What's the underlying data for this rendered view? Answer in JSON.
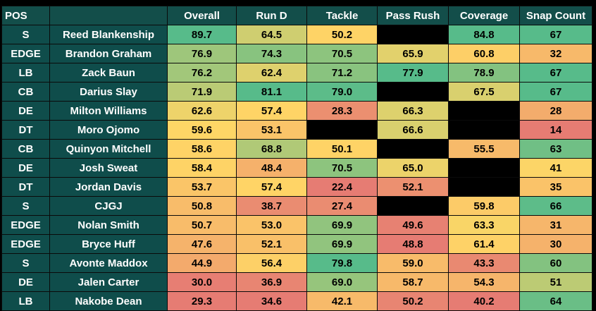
{
  "chart_data": {
    "type": "table",
    "columns": [
      "POS",
      "",
      "Overall",
      "Run D",
      "Tackle",
      "Pass Rush",
      "Coverage",
      "Snap Count"
    ],
    "rows": [
      {
        "pos": "S",
        "player": "Reed Blankenship",
        "values": [
          89.7,
          64.5,
          50.2,
          null,
          84.8,
          67
        ]
      },
      {
        "pos": "EDGE",
        "player": "Brandon Graham",
        "values": [
          76.9,
          74.3,
          70.5,
          65.9,
          60.8,
          32
        ]
      },
      {
        "pos": "LB",
        "player": "Zack Baun",
        "values": [
          76.2,
          62.4,
          71.2,
          77.9,
          78.9,
          67
        ]
      },
      {
        "pos": "CB",
        "player": "Darius Slay",
        "values": [
          71.9,
          81.1,
          79.0,
          null,
          67.5,
          67
        ]
      },
      {
        "pos": "DE",
        "player": "Milton Williams",
        "values": [
          62.6,
          57.4,
          28.3,
          66.3,
          null,
          28
        ]
      },
      {
        "pos": "DT",
        "player": "Moro Ojomo",
        "values": [
          59.6,
          53.1,
          null,
          66.6,
          null,
          14
        ]
      },
      {
        "pos": "CB",
        "player": "Quinyon Mitchell",
        "values": [
          58.6,
          68.8,
          50.1,
          null,
          55.5,
          63
        ]
      },
      {
        "pos": "DE",
        "player": "Josh Sweat",
        "values": [
          58.4,
          48.4,
          70.5,
          65.0,
          null,
          41
        ]
      },
      {
        "pos": "DT",
        "player": "Jordan Davis",
        "values": [
          53.7,
          57.4,
          22.4,
          52.1,
          null,
          35
        ]
      },
      {
        "pos": "S",
        "player": "CJGJ",
        "values": [
          50.8,
          38.7,
          27.4,
          null,
          59.8,
          66
        ]
      },
      {
        "pos": "EDGE",
        "player": "Nolan Smith",
        "values": [
          50.7,
          53.0,
          69.9,
          49.6,
          63.3,
          31
        ]
      },
      {
        "pos": "EDGE",
        "player": "Bryce Huff",
        "values": [
          47.6,
          52.1,
          69.9,
          48.8,
          61.4,
          30
        ]
      },
      {
        "pos": "S",
        "player": "Avonte Maddox",
        "values": [
          44.9,
          56.4,
          79.8,
          59.0,
          43.3,
          60
        ]
      },
      {
        "pos": "DE",
        "player": "Jalen Carter",
        "values": [
          30.0,
          36.9,
          69.0,
          58.7,
          54.3,
          51
        ]
      },
      {
        "pos": "LB",
        "player": "Nakobe Dean",
        "values": [
          29.3,
          34.6,
          42.1,
          50.2,
          40.2,
          64
        ]
      }
    ],
    "value_decimals": [
      1,
      1,
      1,
      1,
      1,
      0
    ],
    "color_scale": {
      "low": "#e67c73",
      "mid": "#ffd666",
      "high": "#57bb8a"
    },
    "header_color": "#134e4a",
    "label_color": "#0f4d4b",
    "empty_color": "#000000"
  }
}
